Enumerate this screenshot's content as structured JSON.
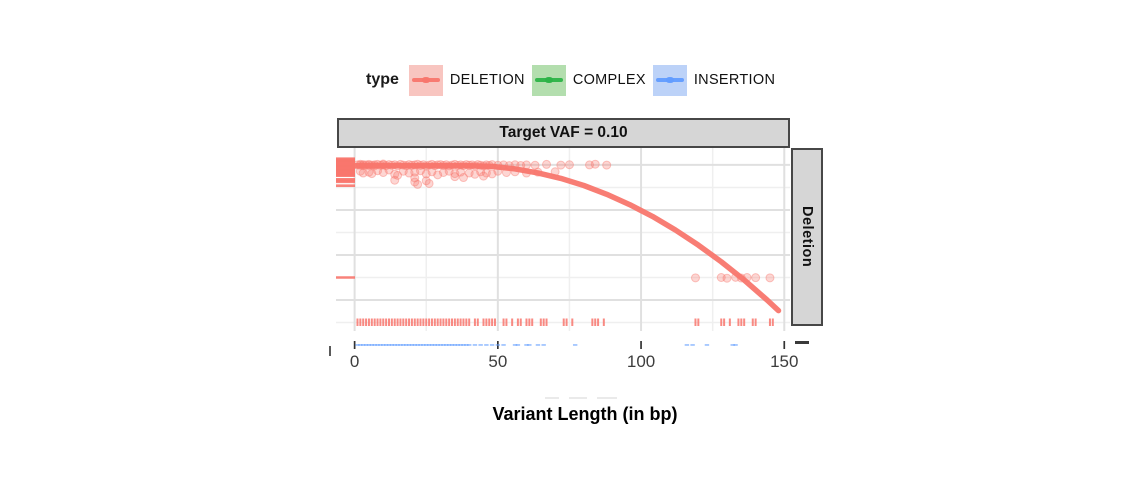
{
  "legend": {
    "title": "type",
    "items": [
      {
        "label": "DELETION",
        "line_color": "#F8766D",
        "fill_color": "#F8C5C0"
      },
      {
        "label": "COMPLEX",
        "line_color": "#2DB348",
        "fill_color": "#B3DEAE"
      },
      {
        "label": "INSERTION",
        "line_color": "#619CFF",
        "fill_color": "#BCD2F8"
      }
    ]
  },
  "facet": {
    "top_label": "Target VAF = 0.10",
    "right_label": "Deletion",
    "strip_bg": "#d6d6d6",
    "strip_border": "#474747"
  },
  "axis": {
    "x_label": "Variant Length (in bp)",
    "x_tick_labels": [
      "0",
      "50",
      "100",
      "150"
    ],
    "tick_color": "#333333",
    "tick_label_color": "#3d3d3d",
    "grid_major_color": "#e0e0e0",
    "grid_minor_color": "#efefef"
  },
  "chart_data": {
    "type": "scatter",
    "title": "Target VAF = 0.10",
    "facet_row_label": "Deletion",
    "xlabel": "Variant Length (in bp)",
    "legend_position": "top",
    "grid": true,
    "x_ticks": [
      0,
      50,
      100,
      150
    ],
    "x_minor_gridlines": [
      25,
      75,
      125
    ],
    "x_range": [
      -6.5,
      152
    ],
    "y_gridlines_major": [
      1.0,
      0.75,
      0.5,
      0.25
    ],
    "y_gridlines_minor": [
      0.875,
      0.625,
      0.375,
      0.125
    ],
    "y_range": [
      0.078,
      1.094
    ],
    "y_tick_labels_visible": false,
    "series": {
      "deletion": {
        "name": "DELETION",
        "color": "#F8766D",
        "points": [
          [
            1,
            1.0
          ],
          [
            2,
            0.998
          ],
          [
            2,
            1.004
          ],
          [
            3,
            0.996
          ],
          [
            3,
            1.002
          ],
          [
            4,
            1.0
          ],
          [
            5,
            0.997
          ],
          [
            5,
            1.003
          ],
          [
            6,
            0.999
          ],
          [
            7,
            1.001
          ],
          [
            7,
            0.995
          ],
          [
            8,
            1.003
          ],
          [
            9,
            0.998
          ],
          [
            10,
            1.0
          ],
          [
            10,
            1.005
          ],
          [
            11,
            0.996
          ],
          [
            12,
            1.002
          ],
          [
            13,
            0.998
          ],
          [
            14,
            1.001
          ],
          [
            15,
            0.995
          ],
          [
            16,
            1.003
          ],
          [
            17,
            0.999
          ],
          [
            18,
            0.996
          ],
          [
            19,
            1.002
          ],
          [
            20,
            0.998
          ],
          [
            21,
            1.0
          ],
          [
            22,
            1.004
          ],
          [
            23,
            0.997
          ],
          [
            24,
            1.001
          ],
          [
            25,
            0.995
          ],
          [
            26,
            0.999
          ],
          [
            27,
            1.003
          ],
          [
            28,
            0.996
          ],
          [
            29,
            1.0
          ],
          [
            30,
            1.002
          ],
          [
            31,
            0.997
          ],
          [
            32,
            1.001
          ],
          [
            33,
            0.995
          ],
          [
            34,
            0.999
          ],
          [
            35,
            1.003
          ],
          [
            36,
            0.997
          ],
          [
            37,
            1.0
          ],
          [
            38,
            0.996
          ],
          [
            39,
            1.002
          ],
          [
            40,
            0.998
          ],
          [
            41,
            1.0
          ],
          [
            42,
            0.995
          ],
          [
            43,
            1.002
          ],
          [
            44,
            0.998
          ],
          [
            45,
            0.995
          ],
          [
            46,
            1.0
          ],
          [
            47,
            0.997
          ],
          [
            48,
            1.002
          ],
          [
            50,
            0.998
          ],
          [
            52,
            1.0
          ],
          [
            54,
            0.996
          ],
          [
            56,
            1.001
          ],
          [
            58,
            0.997
          ],
          [
            60,
            1.0
          ],
          [
            63,
            0.998
          ],
          [
            67,
            1.003
          ],
          [
            72,
            0.999
          ],
          [
            75,
            1.001
          ],
          [
            82,
            1.0
          ],
          [
            84,
            1.004
          ],
          [
            88,
            0.999
          ],
          [
            2,
            0.965
          ],
          [
            3,
            0.955
          ],
          [
            5,
            0.96
          ],
          [
            6,
            0.952
          ],
          [
            8,
            0.968
          ],
          [
            10,
            0.958
          ],
          [
            12,
            0.972
          ],
          [
            14,
            0.948
          ],
          [
            15,
            0.942
          ],
          [
            17,
            0.965
          ],
          [
            19,
            0.955
          ],
          [
            21,
            0.96
          ],
          [
            23,
            0.968
          ],
          [
            25,
            0.95
          ],
          [
            27,
            0.962
          ],
          [
            29,
            0.945
          ],
          [
            31,
            0.958
          ],
          [
            33,
            0.965
          ],
          [
            35,
            0.952
          ],
          [
            37,
            0.96
          ],
          [
            40,
            0.955
          ],
          [
            42,
            0.948
          ],
          [
            44,
            0.962
          ],
          [
            46,
            0.955
          ],
          [
            48,
            0.95
          ],
          [
            50,
            0.965
          ],
          [
            53,
            0.958
          ],
          [
            56,
            0.962
          ],
          [
            60,
            0.955
          ],
          [
            64,
            0.96
          ],
          [
            70,
            0.962
          ],
          [
            14,
            0.915
          ],
          [
            21,
            0.928
          ],
          [
            21,
            0.905
          ],
          [
            22,
            0.892
          ],
          [
            25,
            0.912
          ],
          [
            26,
            0.897
          ],
          [
            35,
            0.935
          ],
          [
            38,
            0.93
          ],
          [
            45,
            0.938
          ],
          [
            119,
            0.373
          ],
          [
            128,
            0.375
          ],
          [
            130,
            0.371
          ],
          [
            133,
            0.376
          ],
          [
            135,
            0.372
          ],
          [
            137,
            0.375
          ],
          [
            140,
            0.374
          ],
          [
            145,
            0.373
          ]
        ],
        "smooth_curve": [
          [
            0,
            0.996
          ],
          [
            8,
            0.996
          ],
          [
            16,
            0.996
          ],
          [
            24,
            0.996
          ],
          [
            32,
            0.996
          ],
          [
            40,
            0.996
          ],
          [
            48,
            0.992
          ],
          [
            56,
            0.978
          ],
          [
            64,
            0.956
          ],
          [
            72,
            0.925
          ],
          [
            80,
            0.886
          ],
          [
            88,
            0.837
          ],
          [
            96,
            0.78
          ],
          [
            104,
            0.714
          ],
          [
            112,
            0.639
          ],
          [
            120,
            0.555
          ],
          [
            128,
            0.462
          ],
          [
            136,
            0.361
          ],
          [
            144,
            0.25
          ],
          [
            148,
            0.191
          ]
        ],
        "rug_x": [
          1,
          2,
          3,
          4,
          5,
          6,
          7,
          8,
          9,
          10,
          11,
          12,
          13,
          14,
          15,
          16,
          17,
          18,
          19,
          20,
          21,
          22,
          23,
          24,
          25,
          26,
          27,
          28,
          29,
          30,
          31,
          32,
          33,
          34,
          35,
          36,
          37,
          38,
          39,
          40,
          42,
          43,
          45,
          46,
          47,
          48,
          49,
          52,
          53,
          55,
          57,
          58,
          60,
          61,
          62,
          65,
          66,
          67,
          73,
          74,
          76,
          83,
          84,
          85,
          87,
          119,
          120,
          128,
          129,
          131,
          134,
          135,
          136,
          139,
          140,
          145,
          146
        ],
        "rug_y": [
          1.035,
          1.03,
          1.025,
          1.02,
          1.015,
          1.01,
          1.005,
          1.0,
          0.995,
          0.99,
          0.985,
          0.98,
          0.975,
          0.97,
          0.965,
          0.96,
          0.955,
          0.95,
          0.945,
          0.94,
          0.92,
          0.913,
          0.906,
          0.885,
          0.375
        ]
      },
      "insertion": {
        "name": "INSERTION",
        "color": "#619CFF",
        "rug_x": [
          1,
          2,
          3,
          4,
          5,
          6,
          7,
          8,
          9,
          10,
          11,
          12,
          13,
          14,
          15,
          16,
          17,
          18,
          19,
          20,
          21,
          22,
          23,
          24,
          25,
          26,
          27,
          28,
          29,
          30,
          31,
          32,
          33,
          34,
          35,
          36,
          37,
          38,
          39,
          40,
          42,
          44,
          46,
          48,
          50,
          52,
          56,
          57,
          60,
          61,
          64,
          66,
          77,
          116,
          118,
          123,
          132,
          133
        ]
      },
      "complex": {
        "name": "COMPLEX",
        "color": "#2DB348"
      }
    }
  }
}
